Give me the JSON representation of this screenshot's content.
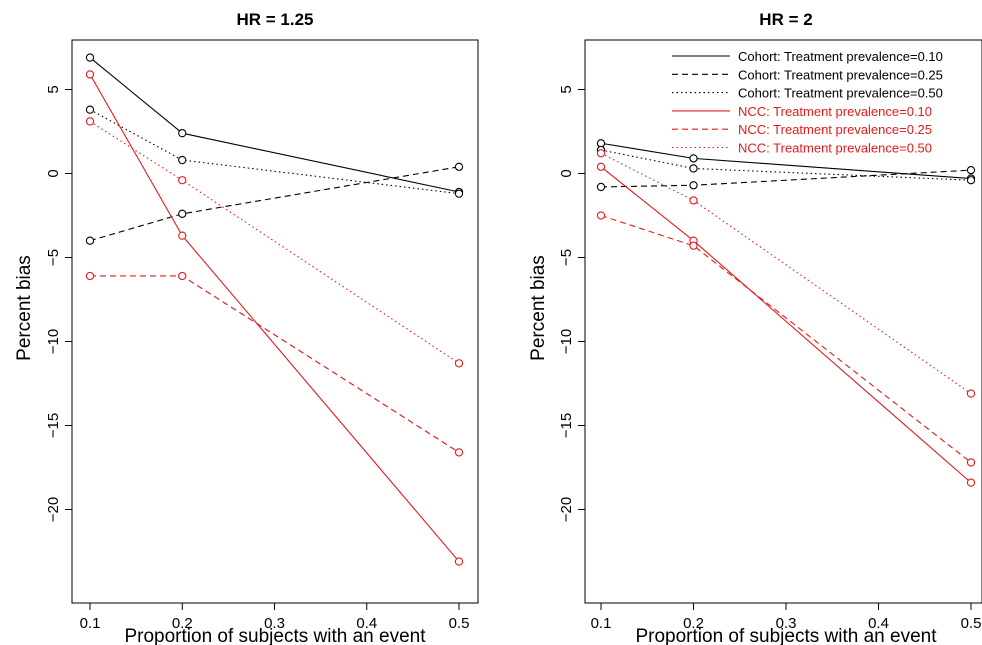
{
  "chart_data": [
    {
      "type": "line",
      "title": "HR = 1.25",
      "xlabel": "Proportion of subjects with an event",
      "ylabel": "Percent bias",
      "x": [
        0.1,
        0.2,
        0.5
      ],
      "xlim": [
        0.1,
        0.5
      ],
      "ylim": [
        -24,
        8
      ],
      "xticks": [
        0.1,
        0.2,
        0.3,
        0.4,
        0.5
      ],
      "xtick_labels": [
        "0.1",
        "0.2",
        "0.3",
        "0.4",
        "0.5"
      ],
      "yticks": [
        5,
        0,
        -5,
        -10,
        -15,
        -20
      ],
      "ytick_labels": [
        "5",
        "0",
        "−5",
        "−10",
        "−15",
        "−20"
      ],
      "grid": false,
      "legend": null,
      "series": [
        {
          "name": "Cohort: Treatment prevalence=0.10",
          "color": "#000000",
          "dash": "solid",
          "values": [
            6.9,
            2.4,
            -1.1
          ]
        },
        {
          "name": "Cohort: Treatment prevalence=0.25",
          "color": "#000000",
          "dash": "dashed",
          "values": [
            -4.0,
            -2.4,
            0.4
          ]
        },
        {
          "name": "Cohort: Treatment prevalence=0.50",
          "color": "#000000",
          "dash": "dotted",
          "values": [
            3.8,
            0.8,
            -1.2
          ]
        },
        {
          "name": "NCC: Treatment prevalence=0.10",
          "color": "#e41a1c",
          "dash": "solid",
          "values": [
            5.9,
            -3.7,
            -23.1
          ]
        },
        {
          "name": "NCC: Treatment prevalence=0.25",
          "color": "#e41a1c",
          "dash": "dashed",
          "values": [
            -6.1,
            -6.1,
            -16.6
          ]
        },
        {
          "name": "NCC: Treatment prevalence=0.50",
          "color": "#e41a1c",
          "dash": "dotted",
          "values": [
            3.1,
            -0.4,
            -11.3
          ]
        }
      ]
    },
    {
      "type": "line",
      "title": "HR = 2",
      "xlabel": "Proportion of subjects with an event",
      "ylabel": "Percent bias",
      "x": [
        0.1,
        0.2,
        0.5
      ],
      "xlim": [
        0.1,
        0.5
      ],
      "ylim": [
        -24,
        8
      ],
      "xticks": [
        0.1,
        0.2,
        0.3,
        0.4,
        0.5
      ],
      "xtick_labels": [
        "0.1",
        "0.2",
        "0.3",
        "0.4",
        "0.5"
      ],
      "yticks": [
        5,
        0,
        -5,
        -10,
        -15,
        -20
      ],
      "ytick_labels": [
        "5",
        "0",
        "−5",
        "−10",
        "−15",
        "−20"
      ],
      "grid": false,
      "legend": "top-right",
      "series": [
        {
          "name": "Cohort: Treatment prevalence=0.10",
          "color": "#000000",
          "dash": "solid",
          "values": [
            1.8,
            0.9,
            -0.3
          ]
        },
        {
          "name": "Cohort: Treatment prevalence=0.25",
          "color": "#000000",
          "dash": "dashed",
          "values": [
            -0.8,
            -0.7,
            0.2
          ]
        },
        {
          "name": "Cohort: Treatment prevalence=0.50",
          "color": "#000000",
          "dash": "dotted",
          "values": [
            1.4,
            0.3,
            -0.4
          ]
        },
        {
          "name": "NCC: Treatment prevalence=0.10",
          "color": "#e41a1c",
          "dash": "solid",
          "values": [
            0.4,
            -4.0,
            -18.4
          ]
        },
        {
          "name": "NCC: Treatment prevalence=0.25",
          "color": "#e41a1c",
          "dash": "dashed",
          "values": [
            -2.5,
            -4.3,
            -17.2
          ]
        },
        {
          "name": "NCC: Treatment prevalence=0.50",
          "color": "#e41a1c",
          "dash": "dotted",
          "values": [
            1.2,
            -1.6,
            -13.1
          ]
        }
      ]
    }
  ]
}
